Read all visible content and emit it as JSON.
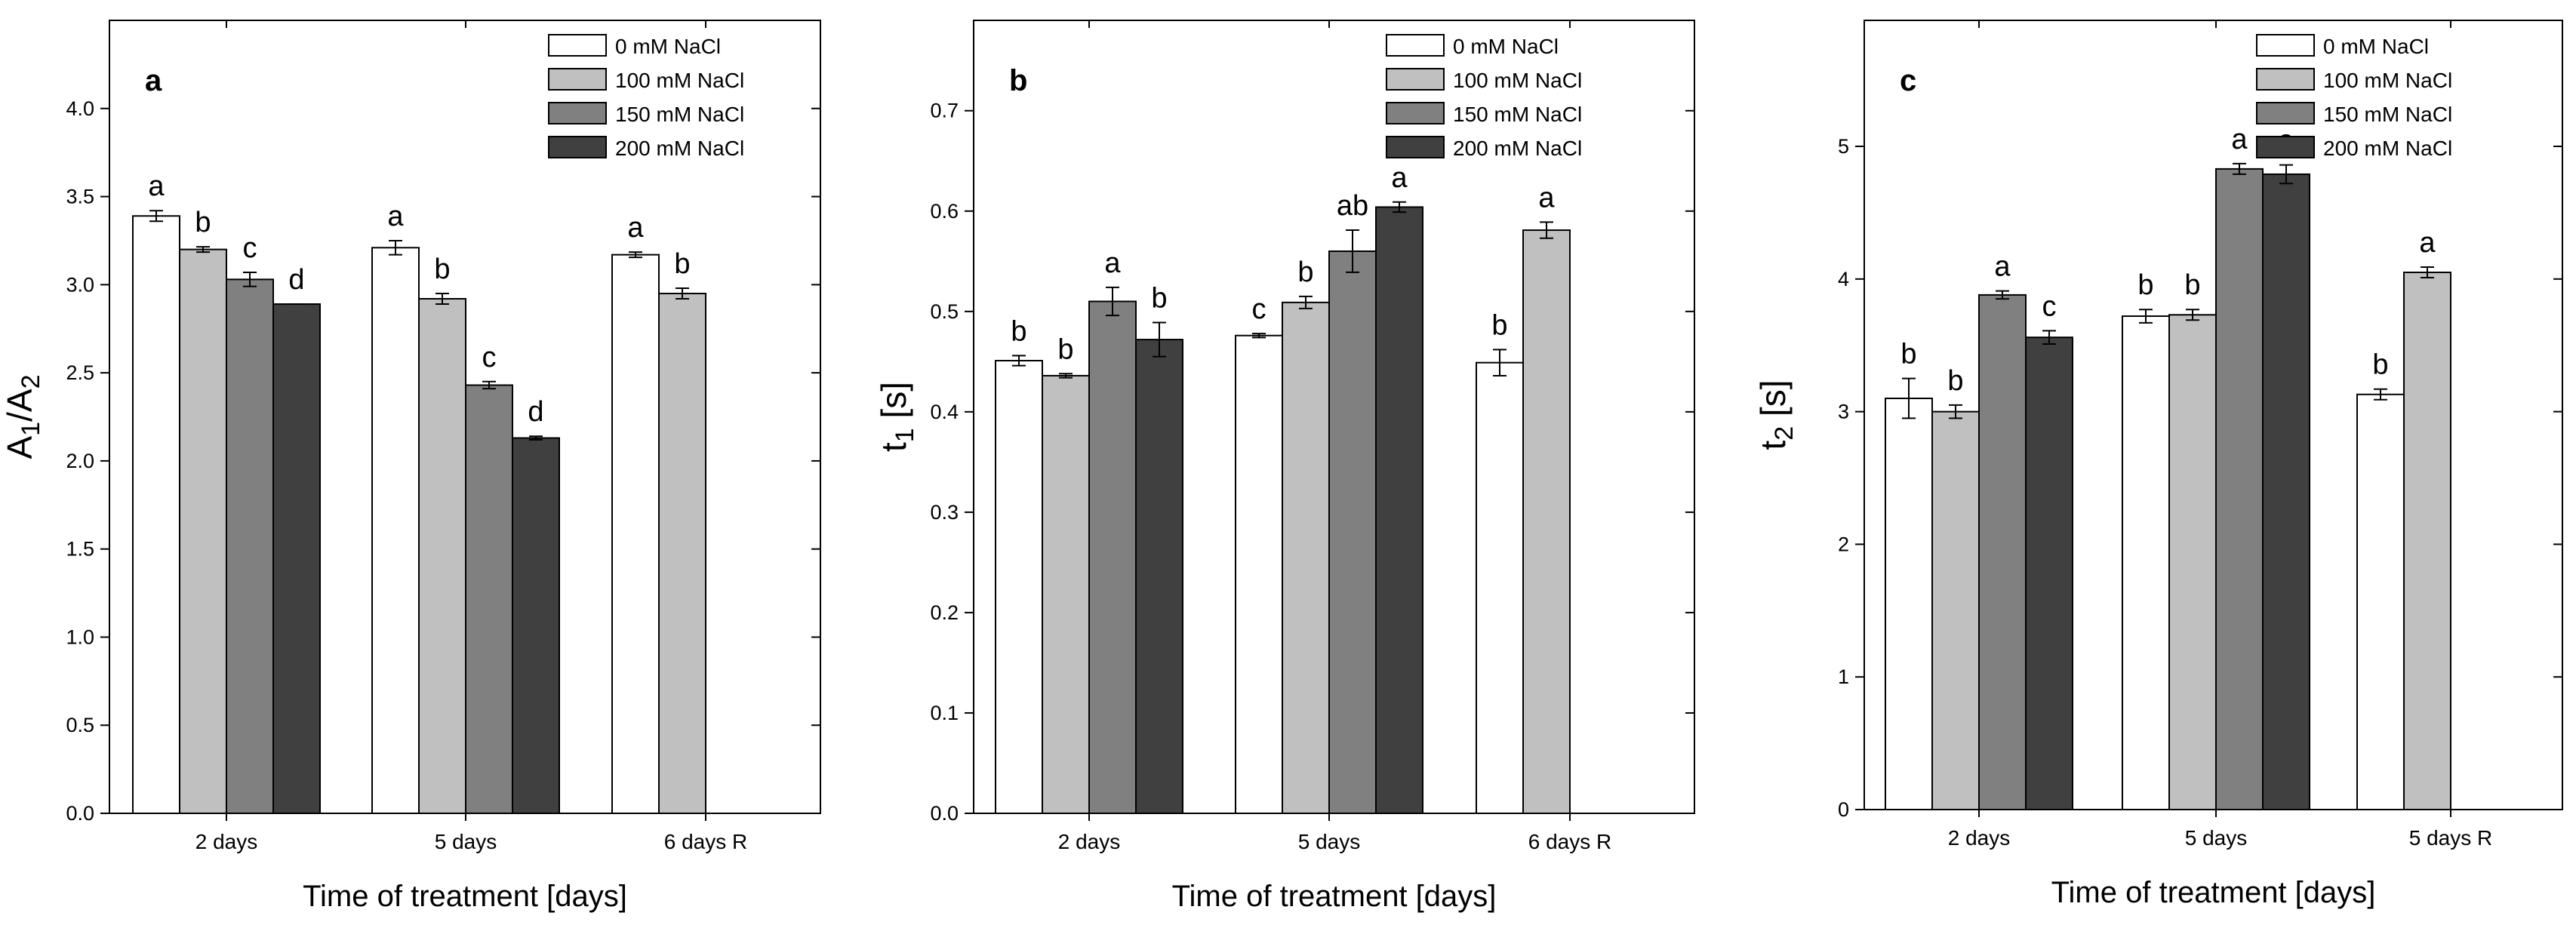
{
  "chart_data": [
    {
      "type": "bar",
      "panel_label": "a",
      "ylabel_main": "A",
      "ylabel_sub1": "1",
      "ylabel_mid": "/A",
      "ylabel_sub2": "2",
      "xlabel": "Time of treatment [days]",
      "ylim": [
        0,
        4.5
      ],
      "yticks": [
        0.0,
        0.5,
        1.0,
        1.5,
        2.0,
        2.5,
        3.0,
        3.5,
        4.0
      ],
      "ytick_labels": [
        "0.0",
        "0.5",
        "1.0",
        "1.5",
        "2.0",
        "2.5",
        "3.0",
        "3.5",
        "4.0"
      ],
      "categories": [
        "2 days",
        "5 days",
        "6 days R"
      ],
      "series": [
        {
          "name": "0 mM NaCl",
          "color": "#ffffff",
          "values": [
            3.39,
            3.21,
            3.17
          ],
          "errors": [
            0.03,
            0.04,
            0.015
          ],
          "letters": [
            "a",
            "a",
            "a"
          ]
        },
        {
          "name": "100 mM NaCl",
          "color": "#c0c0c0",
          "values": [
            3.2,
            2.92,
            2.95
          ],
          "errors": [
            0.015,
            0.03,
            0.03
          ],
          "letters": [
            "b",
            "b",
            "b"
          ]
        },
        {
          "name": "150 mM NaCl",
          "color": "#808080",
          "values": [
            3.03,
            2.43,
            null
          ],
          "errors": [
            0.04,
            0.02,
            null
          ],
          "letters": [
            "c",
            "c",
            ""
          ]
        },
        {
          "name": "200 mM NaCl",
          "color": "#404040",
          "values": [
            2.89,
            2.13,
            null
          ],
          "errors": [
            0.0,
            0.01,
            null
          ],
          "letters": [
            "d",
            "d",
            ""
          ]
        }
      ]
    },
    {
      "type": "bar",
      "panel_label": "b",
      "ylabel_main": "t",
      "ylabel_sub1": "1",
      "ylabel_mid": " [s]",
      "ylabel_sub2": "",
      "xlabel": "Time of treatment [days]",
      "ylim": [
        0,
        0.79
      ],
      "yticks": [
        0.0,
        0.1,
        0.2,
        0.3,
        0.4,
        0.5,
        0.6,
        0.7
      ],
      "ytick_labels": [
        "0.0",
        "0.1",
        "0.2",
        "0.3",
        "0.4",
        "0.5",
        "0.6",
        "0.7"
      ],
      "categories": [
        "2 days",
        "5 days",
        "6 days R"
      ],
      "series": [
        {
          "name": "0 mM NaCl",
          "color": "#ffffff",
          "values": [
            0.451,
            0.476,
            0.449
          ],
          "errors": [
            0.005,
            0.002,
            0.013
          ],
          "letters": [
            "b",
            "c",
            "b"
          ]
        },
        {
          "name": "100 mM NaCl",
          "color": "#c0c0c0",
          "values": [
            0.436,
            0.509,
            0.581
          ],
          "errors": [
            0.002,
            0.006,
            0.008
          ],
          "letters": [
            "b",
            "b",
            "a"
          ]
        },
        {
          "name": "150 mM NaCl",
          "color": "#808080",
          "values": [
            0.51,
            0.56,
            null
          ],
          "errors": [
            0.014,
            0.021,
            null
          ],
          "letters": [
            "a",
            "ab",
            ""
          ]
        },
        {
          "name": "200 mM NaCl",
          "color": "#404040",
          "values": [
            0.472,
            0.604,
            null
          ],
          "errors": [
            0.017,
            0.005,
            null
          ],
          "letters": [
            "b",
            "a",
            ""
          ]
        }
      ]
    },
    {
      "type": "bar",
      "panel_label": "c",
      "ylabel_main": "t",
      "ylabel_sub1": "2",
      "ylabel_mid": " [s]",
      "ylabel_sub2": "",
      "xlabel": "Time of treatment [days]",
      "ylim": [
        0,
        5.95
      ],
      "yticks": [
        0,
        1,
        2,
        3,
        4,
        5
      ],
      "ytick_labels": [
        "0",
        "1",
        "2",
        "3",
        "4",
        "5"
      ],
      "categories": [
        "2 days",
        "5 days",
        "5 days R"
      ],
      "series": [
        {
          "name": "0 mM NaCl",
          "color": "#ffffff",
          "values": [
            3.1,
            3.72,
            3.13
          ],
          "errors": [
            0.15,
            0.05,
            0.04
          ],
          "letters": [
            "b",
            "b",
            "b"
          ]
        },
        {
          "name": "100 mM NaCl",
          "color": "#c0c0c0",
          "values": [
            3.0,
            3.73,
            4.05
          ],
          "errors": [
            0.05,
            0.04,
            0.04
          ],
          "letters": [
            "b",
            "b",
            "a"
          ]
        },
        {
          "name": "150 mM NaCl",
          "color": "#808080",
          "values": [
            3.88,
            4.83,
            null
          ],
          "errors": [
            0.03,
            0.04,
            null
          ],
          "letters": [
            "a",
            "a",
            ""
          ]
        },
        {
          "name": "200 mM NaCl",
          "color": "#404040",
          "values": [
            3.56,
            4.79,
            null
          ],
          "errors": [
            0.05,
            0.07,
            null
          ],
          "letters": [
            "c",
            "a",
            ""
          ]
        }
      ]
    }
  ]
}
